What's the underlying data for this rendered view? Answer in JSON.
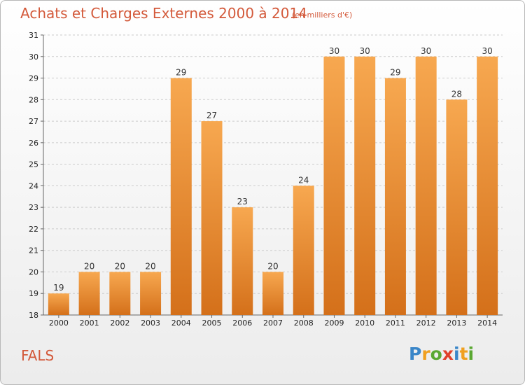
{
  "title": "Achats et Charges Externes 2000 à 2014",
  "subtitle": "(en milliers d'€)",
  "place": "FALS",
  "logo": {
    "letters": [
      "P",
      "r",
      "o",
      "x",
      "i",
      "t",
      "i"
    ],
    "colors": [
      "#3a86c8",
      "#f0a020",
      "#5aa832",
      "#e0402a",
      "#3a86c8",
      "#f0a020",
      "#5aa832"
    ]
  },
  "colors": {
    "bar_top": "#f7a850",
    "bar_bottom": "#d4701a",
    "title": "#d3593a",
    "grid": "#cccccc"
  },
  "chart_data": {
    "type": "bar",
    "categories": [
      "2000",
      "2001",
      "2002",
      "2003",
      "2004",
      "2005",
      "2006",
      "2007",
      "2008",
      "2009",
      "2010",
      "2011",
      "2012",
      "2013",
      "2014"
    ],
    "values": [
      19,
      20,
      20,
      20,
      29,
      27,
      23,
      20,
      24,
      30,
      30,
      29,
      30,
      28,
      30
    ],
    "yticks": [
      18,
      19,
      20,
      21,
      22,
      23,
      24,
      25,
      26,
      27,
      28,
      29,
      30,
      31
    ],
    "ylim": [
      18,
      31
    ],
    "grid": true,
    "data_labels": true
  }
}
